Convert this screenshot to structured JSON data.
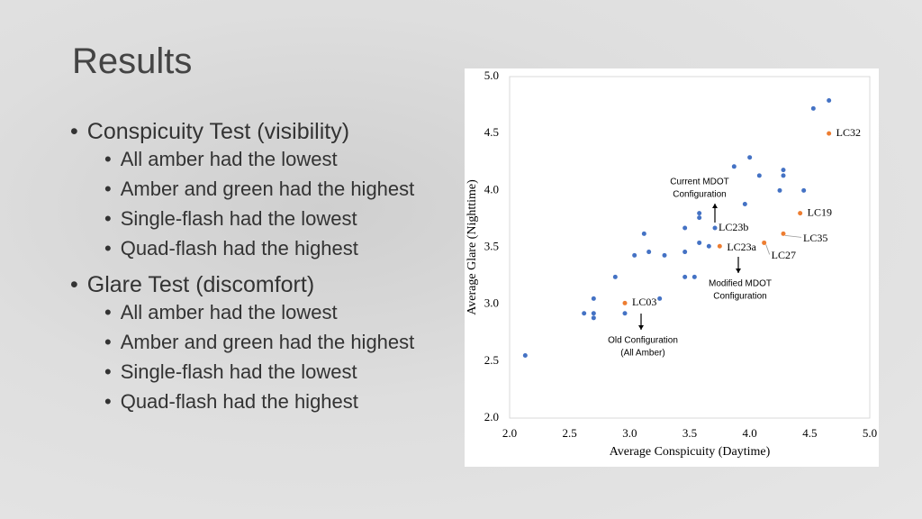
{
  "slide": {
    "title": "Results",
    "bullets": [
      {
        "text": "Conspicuity Test (visibility)",
        "sub": [
          "All amber had the lowest",
          "Amber and green had the highest",
          "Single-flash had the lowest",
          "Quad-flash had the highest"
        ]
      },
      {
        "text": "Glare Test (discomfort)",
        "sub": [
          "All amber had the lowest",
          "Amber and green had the highest",
          "Single-flash had the lowest",
          "Quad-flash had the highest"
        ]
      }
    ]
  },
  "chart_data": {
    "type": "scatter",
    "x_label": "Average Conspicuity (Daytime)",
    "y_label": "Average Glare (Nighttime)",
    "xlim": [
      2.0,
      5.0
    ],
    "ylim": [
      2.0,
      5.0
    ],
    "xticks": [
      {
        "value": 2,
        "label": "2.0"
      },
      {
        "value": 2.5,
        "label": "2.5"
      },
      {
        "value": 3,
        "label": "3.0"
      },
      {
        "value": 3.5,
        "label": "3.5"
      },
      {
        "value": 4,
        "label": "4.0"
      },
      {
        "value": 4.5,
        "label": "4.5"
      },
      {
        "value": 5,
        "label": "5.0"
      }
    ],
    "yticks": [
      {
        "value": 2,
        "label": "2.0"
      },
      {
        "value": 2.5,
        "label": "2.5"
      },
      {
        "value": 3,
        "label": "3.0"
      },
      {
        "value": 3.5,
        "label": "3.5"
      },
      {
        "value": 4,
        "label": "4.0"
      },
      {
        "value": 4.5,
        "label": "4.5"
      },
      {
        "value": 5,
        "label": "5.0"
      }
    ],
    "series": [
      {
        "color": "#4472c4",
        "x": [
          2.13,
          2.62,
          2.7,
          2.7,
          2.7,
          2.88,
          2.96,
          3.04,
          3.12,
          3.16,
          3.25,
          3.29,
          3.46,
          3.46,
          3.46,
          3.54,
          3.58,
          3.58,
          3.58,
          3.66,
          3.71,
          3.87,
          3.96,
          4.0,
          4.08,
          4.25,
          4.28,
          4.28,
          4.45,
          4.53,
          4.66
        ],
        "y": [
          2.55,
          2.92,
          3.05,
          2.92,
          2.88,
          3.24,
          2.92,
          3.43,
          3.62,
          3.46,
          3.05,
          3.43,
          3.67,
          3.46,
          3.24,
          3.24,
          3.8,
          3.76,
          3.54,
          3.51,
          3.67,
          4.21,
          3.88,
          4.29,
          4.13,
          4.0,
          4.18,
          4.13,
          4.0,
          4.72,
          4.79
        ],
        "point_labels": [
          null,
          null,
          null,
          null,
          null,
          null,
          null,
          null,
          null,
          null,
          null,
          null,
          null,
          null,
          null,
          null,
          null,
          null,
          null,
          null,
          "LC23b",
          null,
          null,
          null,
          null,
          null,
          null,
          null,
          null,
          null,
          null
        ]
      },
      {
        "color": "#ed7d31",
        "x": [
          4.66,
          4.42,
          4.28,
          4.12,
          3.75,
          2.96
        ],
        "y": [
          4.5,
          3.8,
          3.62,
          3.54,
          3.51,
          3.01
        ],
        "point_labels": [
          "LC32",
          "LC19",
          "LC35",
          "LC27",
          "LC23a",
          "LC03"
        ]
      }
    ],
    "annotations": [
      {
        "lines": [
          "Current MDOT",
          "Configuration"
        ]
      },
      {
        "lines": [
          "Modified MDOT",
          "Configuration"
        ]
      },
      {
        "lines": [
          "Old Configuration",
          "(All Amber)"
        ]
      }
    ]
  }
}
